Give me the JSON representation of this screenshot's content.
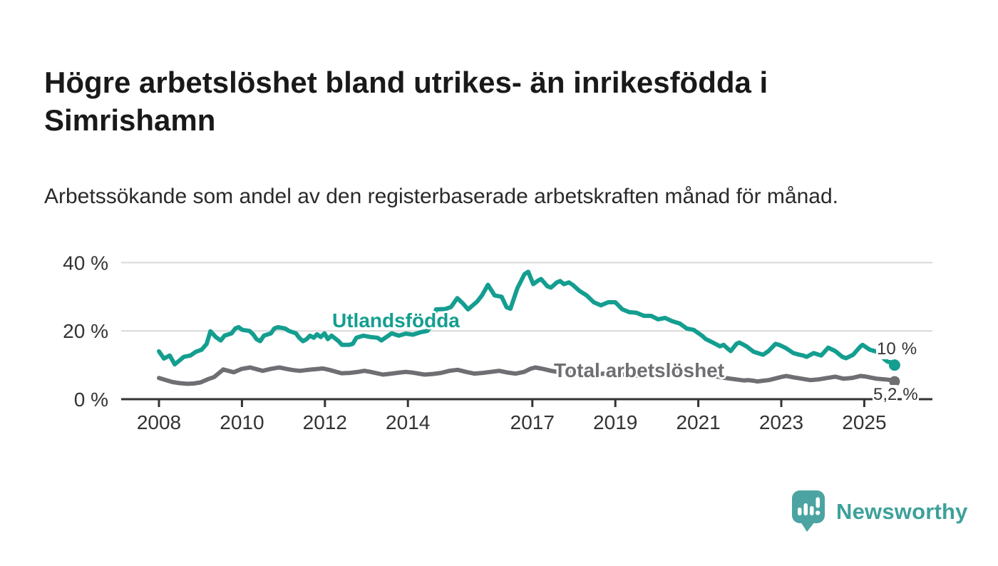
{
  "header": {
    "title": "Högre arbetslöshet bland utrikes- än inrikesfödda i Simrishamn",
    "subtitle": "Arbetssökande som andel av den registerbaserade arbetskraften månad för månad."
  },
  "chart_data": {
    "type": "line",
    "title": "Högre arbetslöshet bland utrikes- än inrikesfödda i Simrishamn",
    "subtitle": "Arbetssökande som andel av den registerbaserade arbetskraften månad för månad.",
    "unit": "%",
    "grid": true,
    "legend_position": "inline-labels",
    "colors": {
      "gridline": "#d9d9d9",
      "axis": "#333333",
      "tick_text": "#333333"
    },
    "y_axis": {
      "ticks": [
        0,
        20,
        40
      ],
      "tick_labels": [
        "0 %",
        "20 %",
        "40 %"
      ],
      "range": [
        0,
        42
      ]
    },
    "x_axis": {
      "tick_years": [
        "2008",
        "2010",
        "2012",
        "2014",
        "2017",
        "2019",
        "2021",
        "2023",
        "2025"
      ],
      "range": [
        2007.1,
        2026.5
      ]
    },
    "series": [
      {
        "name": "Utlandsfödda",
        "color": "#149e90",
        "end_label_value": "10",
        "end_label_unit": "%",
        "end_value": 10,
        "points": [
          [
            2008.0,
            14.0
          ],
          [
            2008.12,
            11.9
          ],
          [
            2008.26,
            12.8
          ],
          [
            2008.38,
            10.2
          ],
          [
            2008.46,
            11.0
          ],
          [
            2008.6,
            12.4
          ],
          [
            2008.76,
            12.8
          ],
          [
            2008.89,
            13.9
          ],
          [
            2009.03,
            14.5
          ],
          [
            2009.15,
            16.2
          ],
          [
            2009.24,
            19.9
          ],
          [
            2009.37,
            18.2
          ],
          [
            2009.49,
            17.2
          ],
          [
            2009.58,
            18.6
          ],
          [
            2009.75,
            19.3
          ],
          [
            2009.84,
            20.7
          ],
          [
            2009.92,
            21.1
          ],
          [
            2010.01,
            20.3
          ],
          [
            2010.18,
            20.0
          ],
          [
            2010.27,
            19.0
          ],
          [
            2010.35,
            17.6
          ],
          [
            2010.44,
            17.0
          ],
          [
            2010.53,
            18.6
          ],
          [
            2010.7,
            19.3
          ],
          [
            2010.78,
            20.7
          ],
          [
            2010.87,
            21.1
          ],
          [
            2011.04,
            20.7
          ],
          [
            2011.13,
            20.0
          ],
          [
            2011.3,
            19.3
          ],
          [
            2011.38,
            18.0
          ],
          [
            2011.47,
            17.0
          ],
          [
            2011.56,
            17.6
          ],
          [
            2011.64,
            18.6
          ],
          [
            2011.73,
            18.0
          ],
          [
            2011.81,
            19.0
          ],
          [
            2011.9,
            18.2
          ],
          [
            2011.99,
            19.3
          ],
          [
            2012.07,
            17.6
          ],
          [
            2012.16,
            18.6
          ],
          [
            2012.33,
            17.0
          ],
          [
            2012.41,
            15.9
          ],
          [
            2012.58,
            15.9
          ],
          [
            2012.67,
            16.2
          ],
          [
            2012.76,
            18.0
          ],
          [
            2012.93,
            18.6
          ],
          [
            2013.1,
            18.2
          ],
          [
            2013.27,
            18.0
          ],
          [
            2013.36,
            17.2
          ],
          [
            2013.53,
            18.6
          ],
          [
            2013.61,
            19.3
          ],
          [
            2013.78,
            18.6
          ],
          [
            2013.95,
            19.2
          ],
          [
            2014.12,
            18.9
          ],
          [
            2014.3,
            19.6
          ],
          [
            2014.47,
            20.0
          ],
          [
            2014.56,
            21.5
          ],
          [
            2014.68,
            26.3
          ],
          [
            2014.9,
            26.4
          ],
          [
            2015.04,
            27.0
          ],
          [
            2015.19,
            29.6
          ],
          [
            2015.33,
            28.0
          ],
          [
            2015.45,
            26.3
          ],
          [
            2015.67,
            28.6
          ],
          [
            2015.79,
            30.5
          ],
          [
            2015.93,
            33.5
          ],
          [
            2016.09,
            30.4
          ],
          [
            2016.26,
            30.0
          ],
          [
            2016.38,
            26.9
          ],
          [
            2016.47,
            26.5
          ],
          [
            2016.64,
            32.5
          ],
          [
            2016.81,
            36.6
          ],
          [
            2016.9,
            37.3
          ],
          [
            2017.02,
            33.7
          ],
          [
            2017.12,
            34.6
          ],
          [
            2017.21,
            35.2
          ],
          [
            2017.36,
            33.1
          ],
          [
            2017.45,
            32.7
          ],
          [
            2017.59,
            34.2
          ],
          [
            2017.67,
            34.6
          ],
          [
            2017.76,
            33.7
          ],
          [
            2017.88,
            34.2
          ],
          [
            2017.97,
            33.5
          ],
          [
            2018.14,
            31.7
          ],
          [
            2018.31,
            30.4
          ],
          [
            2018.48,
            28.4
          ],
          [
            2018.65,
            27.5
          ],
          [
            2018.83,
            28.4
          ],
          [
            2019.0,
            28.4
          ],
          [
            2019.17,
            26.3
          ],
          [
            2019.34,
            25.5
          ],
          [
            2019.51,
            25.3
          ],
          [
            2019.69,
            24.4
          ],
          [
            2019.86,
            24.4
          ],
          [
            2020.03,
            23.4
          ],
          [
            2020.2,
            23.8
          ],
          [
            2020.38,
            22.8
          ],
          [
            2020.55,
            22.2
          ],
          [
            2020.72,
            20.7
          ],
          [
            2020.89,
            20.3
          ],
          [
            2021.09,
            18.6
          ],
          [
            2021.18,
            17.6
          ],
          [
            2021.35,
            16.6
          ],
          [
            2021.52,
            15.5
          ],
          [
            2021.61,
            15.9
          ],
          [
            2021.7,
            14.9
          ],
          [
            2021.78,
            14.1
          ],
          [
            2021.92,
            16.2
          ],
          [
            2021.99,
            16.6
          ],
          [
            2022.16,
            15.5
          ],
          [
            2022.33,
            13.9
          ],
          [
            2022.56,
            13.0
          ],
          [
            2022.69,
            14.1
          ],
          [
            2022.86,
            16.2
          ],
          [
            2022.95,
            15.9
          ],
          [
            2023.12,
            14.9
          ],
          [
            2023.29,
            13.5
          ],
          [
            2023.44,
            13.0
          ],
          [
            2023.53,
            12.8
          ],
          [
            2023.61,
            12.4
          ],
          [
            2023.78,
            13.5
          ],
          [
            2023.96,
            12.8
          ],
          [
            2024.13,
            15.1
          ],
          [
            2024.3,
            14.1
          ],
          [
            2024.47,
            12.4
          ],
          [
            2024.56,
            12.0
          ],
          [
            2024.73,
            13.0
          ],
          [
            2024.91,
            15.5
          ],
          [
            2024.96,
            15.9
          ],
          [
            2025.13,
            14.5
          ],
          [
            2025.3,
            13.9
          ],
          [
            2025.39,
            12.8
          ],
          [
            2025.48,
            11.8
          ],
          [
            2025.56,
            11.0
          ],
          [
            2025.65,
            10.8
          ],
          [
            2025.73,
            10.0
          ]
        ]
      },
      {
        "name": "Total arbetslöshet",
        "color": "#6e6e73",
        "end_label_value": "5,2",
        "end_label_unit": "%",
        "end_value": 5.2,
        "points": [
          [
            2008.0,
            6.2
          ],
          [
            2008.17,
            5.6
          ],
          [
            2008.33,
            5.0
          ],
          [
            2008.5,
            4.7
          ],
          [
            2008.67,
            4.5
          ],
          [
            2008.83,
            4.6
          ],
          [
            2009.0,
            4.9
          ],
          [
            2009.17,
            5.8
          ],
          [
            2009.33,
            6.5
          ],
          [
            2009.55,
            8.7
          ],
          [
            2009.8,
            7.9
          ],
          [
            2010.0,
            8.9
          ],
          [
            2010.2,
            9.3
          ],
          [
            2010.5,
            8.3
          ],
          [
            2010.7,
            8.9
          ],
          [
            2010.9,
            9.3
          ],
          [
            2011.1,
            8.8
          ],
          [
            2011.25,
            8.5
          ],
          [
            2011.4,
            8.3
          ],
          [
            2011.6,
            8.6
          ],
          [
            2011.8,
            8.8
          ],
          [
            2011.95,
            9.0
          ],
          [
            2012.1,
            8.6
          ],
          [
            2012.4,
            7.6
          ],
          [
            2012.6,
            7.7
          ],
          [
            2012.8,
            8.0
          ],
          [
            2012.95,
            8.3
          ],
          [
            2013.1,
            8.0
          ],
          [
            2013.4,
            7.2
          ],
          [
            2013.6,
            7.5
          ],
          [
            2013.8,
            7.8
          ],
          [
            2013.95,
            8.0
          ],
          [
            2014.1,
            7.8
          ],
          [
            2014.4,
            7.2
          ],
          [
            2014.6,
            7.4
          ],
          [
            2014.8,
            7.7
          ],
          [
            2015.0,
            8.3
          ],
          [
            2015.2,
            8.6
          ],
          [
            2015.4,
            8.0
          ],
          [
            2015.6,
            7.5
          ],
          [
            2015.8,
            7.7
          ],
          [
            2016.0,
            8.0
          ],
          [
            2016.2,
            8.3
          ],
          [
            2016.4,
            7.8
          ],
          [
            2016.6,
            7.5
          ],
          [
            2016.8,
            8.0
          ],
          [
            2016.95,
            8.9
          ],
          [
            2017.07,
            9.3
          ],
          [
            2017.25,
            8.9
          ],
          [
            2017.45,
            8.3
          ],
          [
            2017.6,
            8.0
          ],
          [
            2017.8,
            8.2
          ],
          [
            2018.0,
            8.4
          ],
          [
            2018.3,
            7.9
          ],
          [
            2018.6,
            7.4
          ],
          [
            2018.9,
            7.6
          ],
          [
            2019.2,
            7.2
          ],
          [
            2019.5,
            6.9
          ],
          [
            2019.8,
            7.1
          ],
          [
            2020.1,
            7.6
          ],
          [
            2020.4,
            8.3
          ],
          [
            2020.7,
            8.0
          ],
          [
            2021.0,
            7.5
          ],
          [
            2021.3,
            6.9
          ],
          [
            2021.6,
            6.3
          ],
          [
            2021.9,
            5.8
          ],
          [
            2022.1,
            5.5
          ],
          [
            2022.2,
            5.6
          ],
          [
            2022.33,
            5.4
          ],
          [
            2022.42,
            5.2
          ],
          [
            2022.56,
            5.4
          ],
          [
            2022.7,
            5.6
          ],
          [
            2022.9,
            6.2
          ],
          [
            2023.03,
            6.6
          ],
          [
            2023.12,
            6.8
          ],
          [
            2023.29,
            6.4
          ],
          [
            2023.5,
            6.0
          ],
          [
            2023.7,
            5.6
          ],
          [
            2023.9,
            5.8
          ],
          [
            2024.1,
            6.2
          ],
          [
            2024.3,
            6.6
          ],
          [
            2024.5,
            6.0
          ],
          [
            2024.7,
            6.2
          ],
          [
            2024.91,
            6.8
          ],
          [
            2025.05,
            6.6
          ],
          [
            2025.3,
            6.0
          ],
          [
            2025.5,
            5.8
          ],
          [
            2025.65,
            5.6
          ],
          [
            2025.73,
            5.2
          ]
        ]
      }
    ]
  },
  "footer": {
    "brand": "Newsworthy",
    "logo_icon": "speech-bubble-bar-chart-icon",
    "logo_color": "#4ba4a1",
    "text_color": "#3da19a"
  }
}
